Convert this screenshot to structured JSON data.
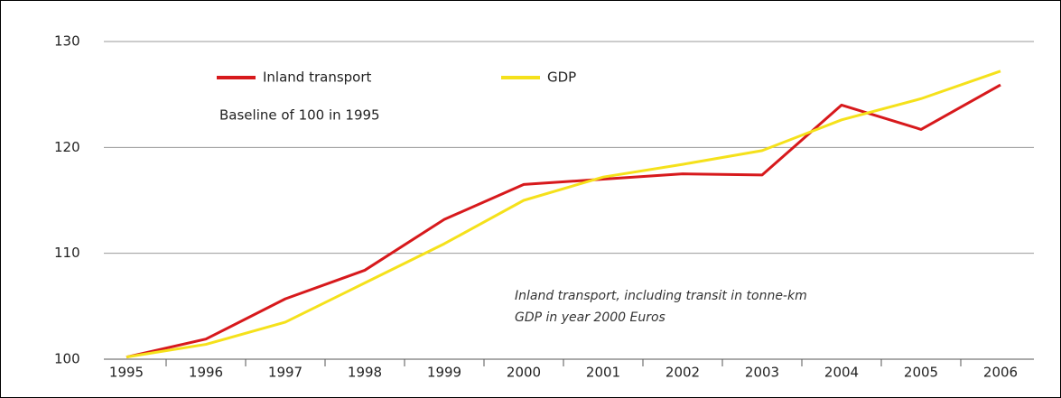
{
  "chart_data": {
    "type": "line",
    "categories": [
      "1995",
      "1996",
      "1997",
      "1998",
      "1999",
      "2000",
      "2001",
      "2002",
      "2003",
      "2004",
      "2005",
      "2006"
    ],
    "series": [
      {
        "name": "Inland transport",
        "color": "#d7191c",
        "values": [
          100.2,
          101.9,
          105.7,
          108.4,
          113.2,
          116.5,
          117.0,
          117.5,
          117.4,
          124.0,
          121.7,
          125.9
        ]
      },
      {
        "name": "GDP",
        "color": "#f5e11b",
        "values": [
          100.2,
          101.4,
          103.5,
          107.2,
          110.9,
          115.0,
          117.2,
          118.4,
          119.7,
          122.6,
          124.6,
          127.2
        ]
      }
    ],
    "ylim": [
      100,
      130
    ],
    "yticks": [
      100,
      110,
      120,
      130
    ],
    "grid": true,
    "annotations": [
      "Baseline of 100 in 1995",
      "Inland transport, including transit in tonne-km",
      "GDP in year 2000 Euros"
    ]
  }
}
